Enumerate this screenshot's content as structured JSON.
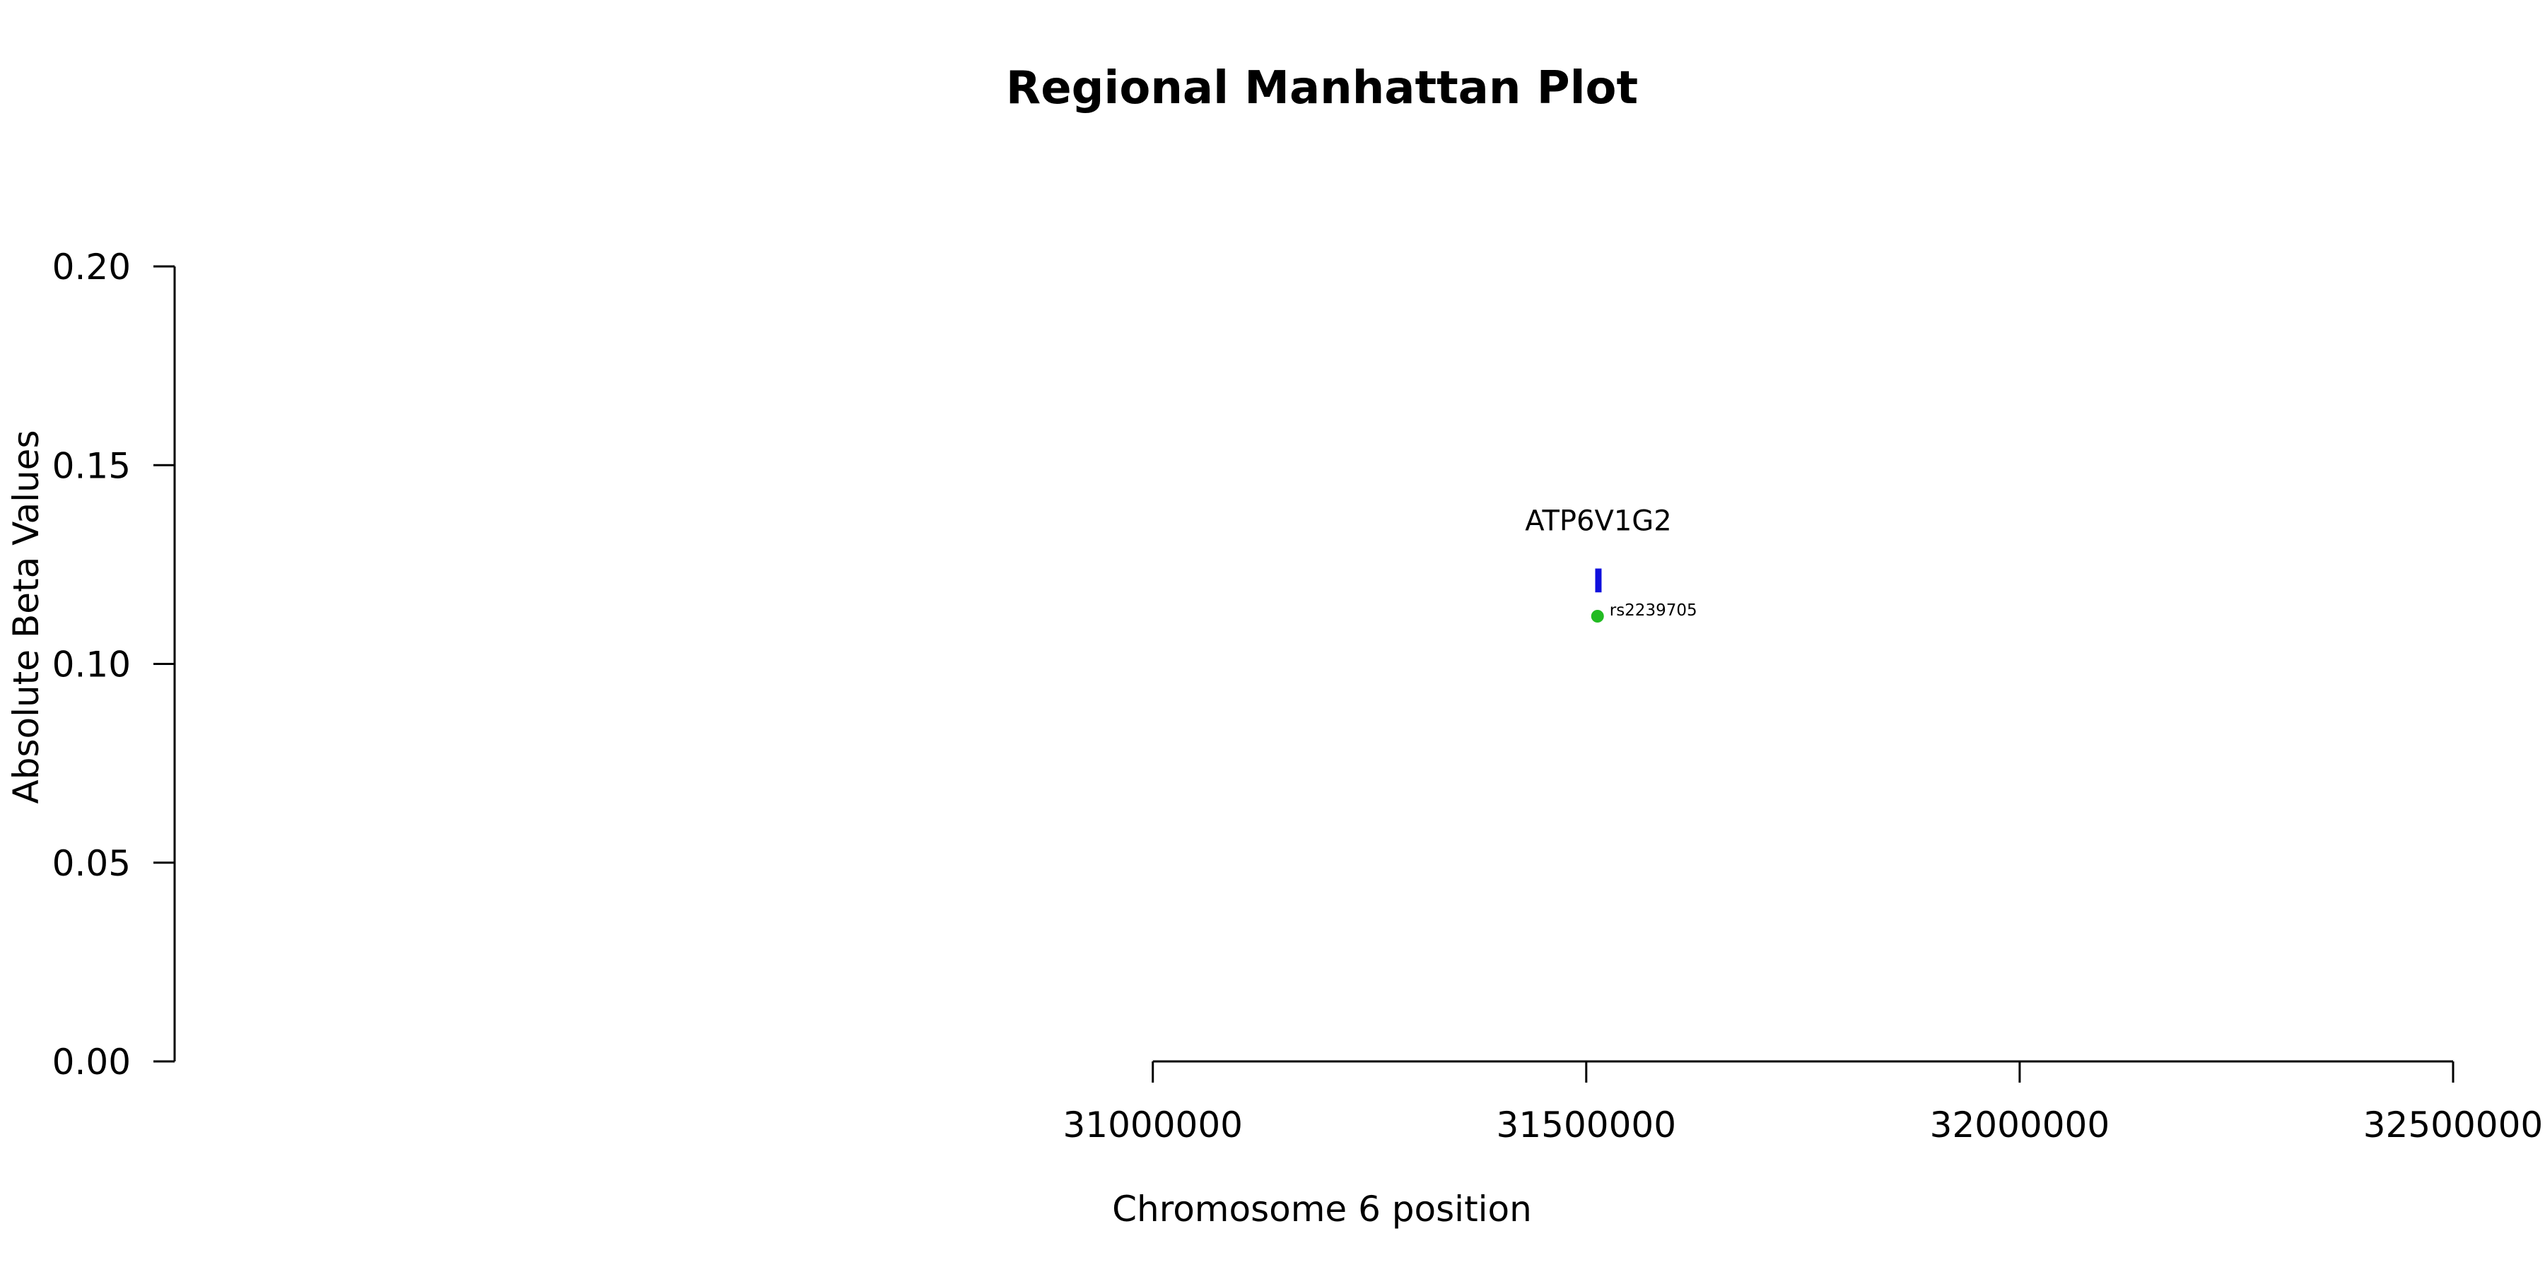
{
  "chart_data": {
    "type": "scatter",
    "title": "Regional Manhattan Plot",
    "xlabel": "Chromosome 6 position",
    "ylabel": "Absolute Beta Values",
    "xlim": [
      30515000,
      32500000
    ],
    "ylim": [
      0,
      0.2
    ],
    "x_ticks": [
      {
        "value": 31000000,
        "label": "31000000"
      },
      {
        "value": 31500000,
        "label": "31500000"
      },
      {
        "value": 32000000,
        "label": "32000000"
      },
      {
        "value": 32500000,
        "label": "32500000"
      }
    ],
    "y_ticks": [
      {
        "value": 0.0,
        "label": "0.00"
      },
      {
        "value": 0.05,
        "label": "0.05"
      },
      {
        "value": 0.1,
        "label": "0.10"
      },
      {
        "value": 0.15,
        "label": "0.15"
      },
      {
        "value": 0.2,
        "label": "0.20"
      }
    ],
    "grid": false,
    "points": [
      {
        "label": "rs2239705",
        "x": 31513000,
        "y": 0.112,
        "color": "#22bb22"
      }
    ],
    "genes": [
      {
        "label": "ATP6V1G2",
        "x": 31514000,
        "y_low": 0.118,
        "y_high": 0.124,
        "color": "#1010dd"
      }
    ]
  }
}
